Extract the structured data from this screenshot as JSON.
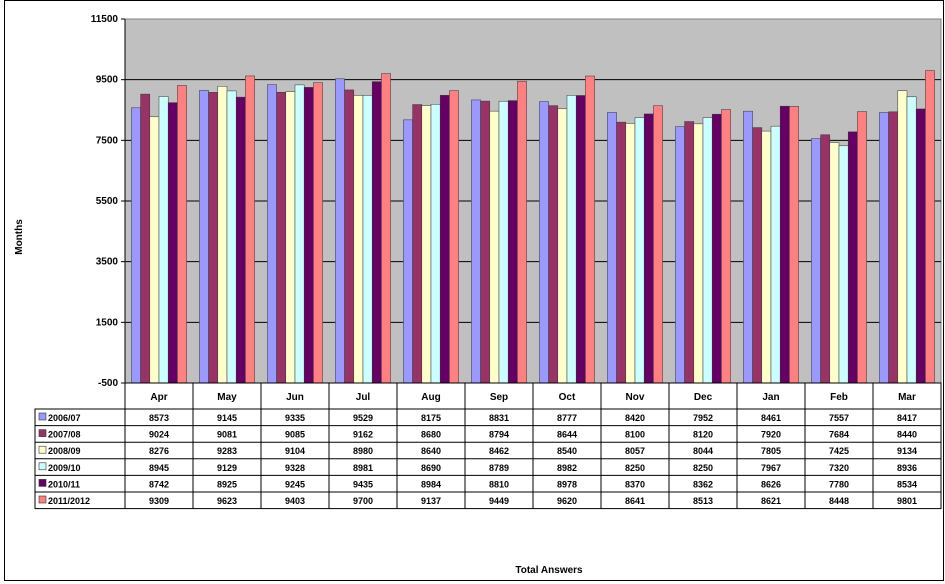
{
  "chart_data": {
    "type": "bar",
    "title": "",
    "xlabel": "Total Answers",
    "ylabel": "Months",
    "ylim": [
      -500,
      11500
    ],
    "y_ticks": [
      "11500",
      "9500",
      "7500",
      "5500",
      "3500",
      "1500",
      "-500"
    ],
    "grid": true,
    "legend": "data-table",
    "categories": [
      "Apr",
      "May",
      "Jun",
      "Jul",
      "Aug",
      "Sep",
      "Oct",
      "Nov",
      "Dec",
      "Jan",
      "Feb",
      "Mar"
    ],
    "series": [
      {
        "name": "2006/07",
        "color": "#9999ff",
        "values": [
          8573,
          9145,
          9335,
          9529,
          8175,
          8831,
          8777,
          8420,
          7952,
          8461,
          7557,
          8417
        ],
        "labels": [
          "8573",
          "9145",
          "9335",
          "9529",
          "8175",
          "8831",
          "8777",
          "8420",
          "7952",
          "8461",
          "7557",
          "8417"
        ]
      },
      {
        "name": "2007/08",
        "color": "#993366",
        "values": [
          9024,
          9081,
          9085,
          9162,
          8680,
          8794,
          8644,
          8100,
          8120,
          7920,
          7684,
          8440
        ],
        "labels": [
          "9024",
          "9081",
          "9085",
          "9162",
          "8680",
          "8794",
          "8644",
          "8100",
          "8120",
          "7920",
          "7684",
          "8440"
        ]
      },
      {
        "name": "2008/09",
        "color": "#ffffcc",
        "values": [
          8276,
          9283,
          9104,
          8980,
          8640,
          8462,
          8540,
          8057,
          8044,
          7805,
          7425,
          9134
        ],
        "labels": [
          "8276",
          "9283",
          "9104",
          "8980",
          "8640",
          "8462",
          "8540",
          "8057",
          "8044",
          "7805",
          "7425",
          "9134"
        ]
      },
      {
        "name": "2009/10",
        "color": "#ccffff",
        "values": [
          8945,
          9129,
          9328,
          8981,
          8690,
          8789,
          8982,
          8250,
          8250,
          7967,
          7320,
          8936
        ],
        "labels": [
          "8945",
          "9129",
          "9328",
          "8981",
          "8690",
          "8789",
          "8982",
          "8250",
          "8250",
          "7967",
          "7320",
          "8936"
        ]
      },
      {
        "name": "2010/11",
        "color": "#660066",
        "values": [
          8742,
          8925,
          9245,
          9435,
          8984,
          8810,
          8978,
          8370,
          8362,
          8626,
          7780,
          8534
        ],
        "labels": [
          "8742",
          "8925",
          "9245",
          "9435",
          "8984",
          "8810",
          "8978",
          "8370",
          "8362",
          "8626",
          "7780",
          "8534"
        ]
      },
      {
        "name": "2011/2012",
        "color": "#ff8080",
        "values": [
          9309,
          9623,
          9403,
          9700,
          9137,
          9449,
          9620,
          8641,
          8513,
          8621,
          8448,
          9801
        ],
        "labels": [
          "9309",
          "9623",
          "9403",
          "9700",
          "9137",
          "9449",
          "9620",
          "8641",
          "8513",
          "8621",
          "8448",
          "9801"
        ]
      }
    ]
  }
}
